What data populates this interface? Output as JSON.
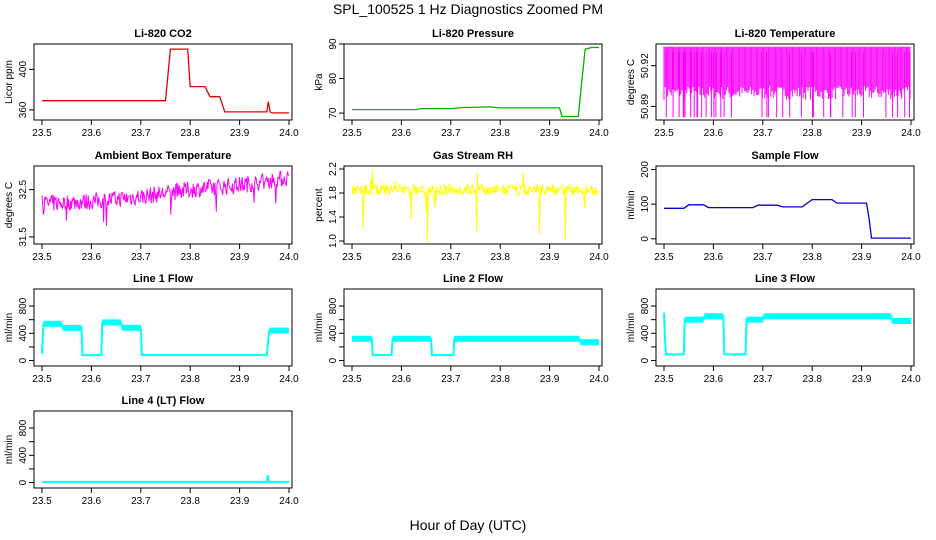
{
  "figure": {
    "title": "SPL_100525  1 Hz Diagnostics Zoomed PM",
    "xlabel": "Hour of Day (UTC)"
  },
  "chart_data": [
    {
      "type": "line",
      "title": "Li-820 CO2",
      "ylabel": "Licor ppm",
      "color": "#e00000",
      "xlim": [
        23.5,
        24.0
      ],
      "ylim": [
        350,
        425
      ],
      "xticks": [
        "23.5",
        "23.6",
        "23.7",
        "23.8",
        "23.9",
        "24.0"
      ],
      "yticks": [
        360,
        400
      ],
      "ytick_labels": [
        "360",
        "400"
      ],
      "x": [
        23.5,
        23.745,
        23.75,
        23.76,
        23.795,
        23.8,
        23.83,
        23.84,
        23.86,
        23.87,
        23.955,
        23.958,
        23.962,
        23.965,
        24.0
      ],
      "y": [
        369,
        369,
        369,
        420,
        420,
        383,
        383,
        373,
        373,
        358,
        358,
        368,
        358,
        357,
        357
      ]
    },
    {
      "type": "line",
      "title": "Li-820 Pressure",
      "ylabel": "kPa",
      "color": "#00b000",
      "xlim": [
        23.5,
        24.0
      ],
      "ylim": [
        68,
        90
      ],
      "xticks": [
        "23.5",
        "23.6",
        "23.7",
        "23.8",
        "23.9",
        "24.0"
      ],
      "yticks": [
        70,
        80,
        90
      ],
      "ytick_labels": [
        "70",
        "80",
        "90"
      ],
      "x": [
        23.5,
        23.63,
        23.64,
        23.7,
        23.72,
        23.78,
        23.8,
        23.92,
        23.925,
        23.958,
        23.965,
        23.972,
        23.985,
        24.0
      ],
      "y": [
        71,
        71,
        71.3,
        71.3,
        71.6,
        71.8,
        71.5,
        71.5,
        69,
        69,
        79,
        88.5,
        89,
        89
      ]
    },
    {
      "type": "line",
      "title": "Li-820 Temperature",
      "ylabel": "degrees C",
      "color": "#ff00ff",
      "xlim": [
        23.5,
        24.0
      ],
      "ylim": [
        50.88,
        50.936
      ],
      "xticks": [
        "23.5",
        "23.6",
        "23.7",
        "23.8",
        "23.9",
        "24.0"
      ],
      "yticks": [
        50.89,
        50.92
      ],
      "ytick_labels": [
        "50.89",
        "50.92"
      ],
      "x": [
        23.5,
        24.0
      ],
      "y": [
        50.905,
        50.905
      ]
    },
    {
      "type": "line",
      "title": "Ambient Box Temperature",
      "ylabel": "degrees C",
      "color": "#ff00ff",
      "xlim": [
        23.5,
        24.0
      ],
      "ylim": [
        31.35,
        33.0
      ],
      "xticks": [
        "23.5",
        "23.6",
        "23.7",
        "23.8",
        "23.9",
        "24.0"
      ],
      "yticks": [
        31.5,
        32.5
      ],
      "ytick_labels": [
        "31.5",
        "32.5"
      ],
      "x": [
        23.5,
        23.6,
        23.7,
        23.8,
        23.9,
        24.0
      ],
      "y": [
        32.2,
        32.25,
        32.35,
        32.5,
        32.6,
        32.75
      ]
    },
    {
      "type": "line",
      "title": "Gas Stream RH",
      "ylabel": "percent",
      "color": "#ffff00",
      "xlim": [
        23.5,
        24.0
      ],
      "ylim": [
        0.95,
        2.25
      ],
      "xticks": [
        "23.5",
        "23.6",
        "23.7",
        "23.8",
        "23.9",
        "24.0"
      ],
      "yticks": [
        1.0,
        1.4,
        1.8,
        2.2
      ],
      "ytick_labels": [
        "1.0",
        "1.4",
        "1.8",
        "2.2"
      ],
      "x": [
        23.5,
        23.6,
        23.7,
        23.8,
        23.9,
        24.0
      ],
      "y": [
        1.85,
        1.85,
        1.85,
        1.85,
        1.85,
        1.85
      ]
    },
    {
      "type": "line",
      "title": "Sample Flow",
      "ylabel": "ml/min",
      "color": "#0000cc",
      "xlim": [
        23.5,
        24.0
      ],
      "ylim": [
        -15,
        210
      ],
      "xticks": [
        "23.5",
        "23.6",
        "23.7",
        "23.8",
        "23.9",
        "24.0"
      ],
      "yticks": [
        0,
        100,
        200
      ],
      "ytick_labels": [
        "0",
        "100",
        "200"
      ],
      "x": [
        23.5,
        23.54,
        23.55,
        23.58,
        23.59,
        23.68,
        23.69,
        23.73,
        23.74,
        23.78,
        23.79,
        23.8,
        23.84,
        23.85,
        23.91,
        23.915,
        23.92,
        24.0
      ],
      "y": [
        88,
        88,
        98,
        98,
        90,
        90,
        97,
        97,
        92,
        92,
        103,
        113,
        113,
        103,
        103,
        60,
        2,
        2
      ]
    },
    {
      "type": "line",
      "title": "Line 1 Flow",
      "ylabel": "ml/min",
      "color": "#00ffff",
      "xlim": [
        23.5,
        24.0
      ],
      "ylim": [
        -80,
        1050
      ],
      "xticks": [
        "23.5",
        "23.6",
        "23.7",
        "23.8",
        "23.9",
        "24.0"
      ],
      "yticks": [
        0,
        200,
        400,
        600,
        800
      ],
      "ytick_labels": [
        "0",
        "400",
        "800"
      ],
      "x": [
        23.5,
        23.503,
        23.54,
        23.542,
        23.58,
        23.582,
        23.62,
        23.622,
        23.66,
        23.662,
        23.7,
        23.702,
        23.955,
        23.96,
        24.0
      ],
      "y": [
        100,
        540,
        540,
        480,
        480,
        80,
        80,
        560,
        560,
        480,
        480,
        80,
        80,
        440,
        440
      ]
    },
    {
      "type": "line",
      "title": "Line 2 Flow",
      "ylabel": "ml/min",
      "color": "#00ffff",
      "xlim": [
        23.5,
        24.0
      ],
      "ylim": [
        -80,
        1050
      ],
      "xticks": [
        "23.5",
        "23.6",
        "23.7",
        "23.8",
        "23.9",
        "24.0"
      ],
      "yticks": [
        0,
        200,
        400,
        600,
        800
      ],
      "ytick_labels": [
        "0",
        "400",
        "800"
      ],
      "x": [
        23.5,
        23.54,
        23.542,
        23.58,
        23.582,
        23.66,
        23.662,
        23.705,
        23.707,
        23.96,
        23.962,
        24.0
      ],
      "y": [
        320,
        320,
        80,
        80,
        320,
        320,
        80,
        80,
        320,
        320,
        270,
        270
      ]
    },
    {
      "type": "line",
      "title": "Line 3 Flow",
      "ylabel": "ml/min",
      "color": "#00ffff",
      "xlim": [
        23.5,
        24.0
      ],
      "ylim": [
        -80,
        1050
      ],
      "xticks": [
        "23.5",
        "23.6",
        "23.7",
        "23.8",
        "23.9",
        "24.0"
      ],
      "yticks": [
        0,
        200,
        400,
        600,
        800
      ],
      "ytick_labels": [
        "0",
        "400",
        "800"
      ],
      "x": [
        23.5,
        23.502,
        23.504,
        23.54,
        23.542,
        23.58,
        23.582,
        23.62,
        23.622,
        23.665,
        23.667,
        23.7,
        23.702,
        23.96,
        23.962,
        24.0
      ],
      "y": [
        700,
        300,
        90,
        90,
        600,
        600,
        650,
        650,
        90,
        90,
        600,
        600,
        650,
        650,
        580,
        580
      ]
    },
    {
      "type": "line",
      "title": "Line 4 (LT) Flow",
      "ylabel": "ml/min",
      "color": "#00ffff",
      "xlim": [
        23.5,
        24.0
      ],
      "ylim": [
        -80,
        1050
      ],
      "xticks": [
        "23.5",
        "23.6",
        "23.7",
        "23.8",
        "23.9",
        "24.0"
      ],
      "yticks": [
        0,
        200,
        400,
        600,
        800
      ],
      "ytick_labels": [
        "0",
        "400",
        "800"
      ],
      "x": [
        23.5,
        23.955,
        23.957,
        23.959,
        23.961,
        24.0
      ],
      "y": [
        10,
        10,
        110,
        10,
        10,
        10
      ]
    }
  ]
}
